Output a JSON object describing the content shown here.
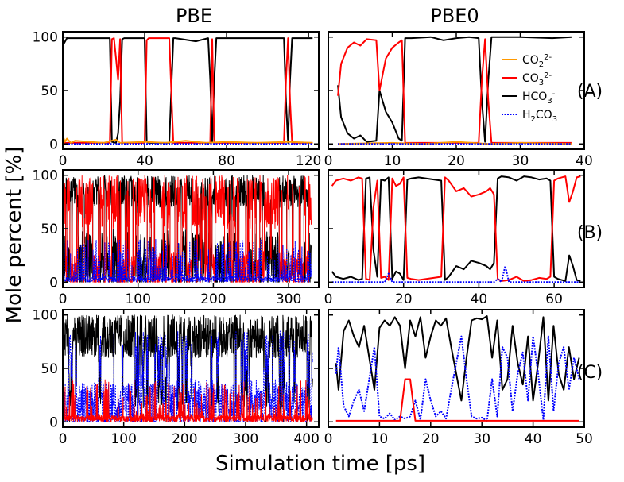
{
  "figure": {
    "column_titles": [
      "PBE",
      "PBE0"
    ],
    "row_labels": [
      "(A)",
      "(B)",
      "(C)"
    ],
    "ylabel": "Mole percent [%]",
    "xlabel": "Simulation time [ps]"
  },
  "legend": {
    "placement": "inside top-right of panel (A) PBE0",
    "entries": [
      {
        "base": "CO",
        "sub": "2",
        "sup": "2-",
        "color": "#ff9900",
        "style": "solid"
      },
      {
        "base": "CO",
        "sub": "3",
        "sup": "2-",
        "color": "#ff0000",
        "style": "solid"
      },
      {
        "base": "HCO",
        "sub": "3",
        "sup": "-",
        "color": "#000000",
        "style": "solid"
      },
      {
        "base": "H",
        "sub": "2",
        "base2": "CO",
        "sub2": "3",
        "color": "#0000ff",
        "style": "dotted"
      }
    ]
  },
  "chart_data": [
    {
      "type": "line",
      "panel": "A",
      "column": "PBE",
      "xlim": [
        0,
        125
      ],
      "ylim": [
        -5,
        105
      ],
      "xticks": [
        0,
        40,
        80,
        120
      ],
      "yticks": [
        0,
        50,
        100
      ],
      "grid": false,
      "series": [
        {
          "name": "HCO3-",
          "color": "#000000",
          "x": [
            0,
            2,
            10,
            20,
            23,
            24,
            26,
            27,
            28,
            29,
            30,
            31,
            40,
            41,
            42,
            43,
            52,
            53,
            54,
            55,
            65,
            71,
            72,
            73,
            74,
            75,
            80,
            90,
            100,
            108,
            109,
            110,
            111,
            112,
            118,
            122
          ],
          "y": [
            92,
            99,
            99,
            99,
            99,
            2,
            1,
            10,
            40,
            98,
            99,
            99,
            99,
            2,
            1,
            1,
            1,
            50,
            99,
            99,
            96,
            99,
            60,
            2,
            60,
            99,
            99,
            99,
            99,
            99,
            40,
            1,
            60,
            99,
            99,
            99
          ]
        },
        {
          "name": "CO3 2-",
          "color": "#ff0000",
          "x": [
            0,
            23,
            24,
            25,
            26,
            27,
            28,
            29,
            40,
            41,
            42,
            52,
            53,
            54,
            72,
            73,
            74,
            108,
            109,
            110,
            111,
            112,
            122
          ],
          "y": [
            1,
            1,
            98,
            99,
            80,
            60,
            98,
            1,
            1,
            97,
            99,
            99,
            50,
            1,
            1,
            98,
            1,
            1,
            60,
            99,
            40,
            1,
            1
          ]
        },
        {
          "name": "CO2",
          "color": "#ff9900",
          "x": [
            0,
            1,
            2,
            4,
            6,
            20,
            26,
            28,
            40,
            50,
            60,
            70,
            80,
            95,
            110,
            122
          ],
          "y": [
            8,
            2,
            5,
            1,
            3,
            1,
            4,
            1,
            2,
            1,
            3,
            1,
            2,
            1,
            2,
            1
          ]
        },
        {
          "name": "H2CO3",
          "color": "#0000ff",
          "x": [
            0,
            30,
            60,
            90,
            122
          ],
          "y": [
            0,
            0,
            0,
            0,
            0
          ]
        }
      ]
    },
    {
      "type": "line",
      "panel": "A",
      "column": "PBE0",
      "xlim": [
        0,
        40
      ],
      "ylim": [
        -5,
        105
      ],
      "xticks": [
        0,
        10,
        20,
        30,
        40
      ],
      "yticks": [
        0,
        50,
        100
      ],
      "grid": false,
      "series": [
        {
          "name": "HCO3-",
          "color": "#000000",
          "x": [
            1.5,
            2,
            3,
            4,
            5,
            6,
            7.5,
            8,
            8.5,
            9,
            10,
            11,
            11.5,
            12,
            13,
            16,
            18,
            20,
            22,
            23.5,
            24,
            24.5,
            25,
            25.5,
            30,
            35,
            38
          ],
          "y": [
            55,
            25,
            10,
            5,
            8,
            2,
            3,
            50,
            40,
            30,
            20,
            5,
            3,
            99,
            99,
            100,
            97,
            99,
            100,
            99,
            40,
            2,
            60,
            100,
            100,
            99,
            100
          ]
        },
        {
          "name": "CO3 2-",
          "color": "#ff0000",
          "x": [
            1.5,
            2,
            3,
            4,
            5,
            6,
            7.5,
            8,
            9,
            10,
            11,
            11.5,
            12,
            23.5,
            24,
            24.5,
            25,
            25.5,
            38
          ],
          "y": [
            45,
            75,
            90,
            95,
            92,
            98,
            97,
            50,
            80,
            90,
            95,
            97,
            1,
            1,
            60,
            98,
            40,
            1,
            1
          ]
        },
        {
          "name": "CO2",
          "color": "#ff9900",
          "x": [
            1.5,
            10,
            15,
            20,
            25,
            30,
            38
          ],
          "y": [
            0,
            1,
            0,
            2,
            0,
            1,
            0
          ]
        },
        {
          "name": "H2CO3",
          "color": "#0000ff",
          "x": [
            1.5,
            20,
            38
          ],
          "y": [
            0,
            0,
            0
          ]
        }
      ]
    },
    {
      "type": "line",
      "panel": "B",
      "column": "PBE",
      "xlim": [
        0,
        340
      ],
      "ylim": [
        -5,
        105
      ],
      "xticks": [
        0,
        100,
        200,
        300
      ],
      "yticks": [
        0,
        50,
        100
      ],
      "grid": false,
      "series": [
        {
          "name": "HCO3-",
          "color": "#000000",
          "x": [
            0,
            330
          ],
          "y": [
            85,
            80
          ]
        },
        {
          "name": "CO3 2-",
          "color": "#ff0000",
          "x": [
            0,
            330
          ],
          "y": [
            10,
            15
          ]
        },
        {
          "name": "H2CO3",
          "color": "#0000ff",
          "x": [
            0,
            330
          ],
          "y": [
            3,
            3
          ]
        }
      ]
    },
    {
      "type": "line",
      "panel": "B",
      "column": "PBE0",
      "xlim": [
        0,
        68
      ],
      "ylim": [
        -5,
        105
      ],
      "xticks": [
        0,
        20,
        40,
        60
      ],
      "yticks": [
        0,
        50,
        100
      ],
      "grid": false,
      "series": [
        {
          "name": "HCO3-",
          "color": "#000000",
          "x": [
            1,
            2,
            4,
            6,
            8,
            9,
            10,
            11,
            12,
            13,
            14,
            15,
            16,
            17,
            18,
            19,
            20,
            21,
            22,
            24,
            26,
            28,
            30,
            31,
            32,
            34,
            36,
            38,
            40,
            42,
            43,
            44,
            45,
            46,
            48,
            50,
            52,
            54,
            56,
            58,
            59,
            60,
            61,
            62,
            63,
            64,
            65,
            66,
            67
          ],
          "y": [
            10,
            5,
            3,
            5,
            2,
            3,
            97,
            98,
            30,
            5,
            96,
            95,
            98,
            3,
            10,
            8,
            2,
            96,
            97,
            98,
            97,
            96,
            95,
            2,
            5,
            15,
            12,
            20,
            18,
            15,
            12,
            18,
            97,
            99,
            98,
            95,
            99,
            98,
            96,
            97,
            95,
            5,
            3,
            2,
            1,
            25,
            15,
            2,
            1
          ]
        },
        {
          "name": "CO3 2-",
          "color": "#ff0000",
          "x": [
            1,
            2,
            4,
            6,
            8,
            9,
            10,
            11,
            12,
            13,
            14,
            15,
            16,
            17,
            18,
            19,
            20,
            21,
            22,
            24,
            26,
            28,
            30,
            31,
            32,
            34,
            36,
            38,
            40,
            42,
            43,
            44,
            45,
            46,
            48,
            50,
            52,
            54,
            56,
            58,
            59,
            60,
            61,
            62,
            63,
            64,
            65,
            66,
            67
          ],
          "y": [
            90,
            95,
            97,
            95,
            98,
            97,
            3,
            2,
            70,
            95,
            4,
            5,
            2,
            97,
            90,
            92,
            98,
            4,
            3,
            2,
            3,
            4,
            5,
            98,
            95,
            85,
            88,
            80,
            82,
            85,
            88,
            82,
            3,
            1,
            2,
            5,
            1,
            2,
            4,
            3,
            5,
            95,
            97,
            98,
            99,
            75,
            85,
            98,
            99
          ]
        },
        {
          "name": "H2CO3",
          "color": "#0000ff",
          "x": [
            1,
            10,
            15,
            16,
            17,
            20,
            40,
            44,
            45,
            46,
            47,
            48,
            55,
            60,
            67
          ],
          "y": [
            0,
            0,
            0,
            8,
            0,
            0,
            0,
            0,
            3,
            0,
            15,
            0,
            0,
            0,
            0
          ]
        }
      ]
    },
    {
      "type": "line",
      "panel": "C",
      "column": "PBE",
      "xlim": [
        0,
        420
      ],
      "ylim": [
        -5,
        105
      ],
      "xticks": [
        0,
        100,
        200,
        300,
        400
      ],
      "yticks": [
        0,
        50,
        100
      ],
      "grid": false,
      "series": [
        {
          "name": "HCO3-",
          "color": "#000000",
          "x": [
            0,
            410
          ],
          "y": [
            85,
            85
          ]
        },
        {
          "name": "H2CO3",
          "color": "#0000ff",
          "x": [
            0,
            410
          ],
          "y": [
            20,
            20
          ]
        },
        {
          "name": "CO3 2-",
          "color": "#ff0000",
          "x": [
            0,
            410
          ],
          "y": [
            5,
            5
          ]
        }
      ]
    },
    {
      "type": "line",
      "panel": "C",
      "column": "PBE0",
      "xlim": [
        0,
        50
      ],
      "ylim": [
        -5,
        105
      ],
      "xticks": [
        0,
        10,
        20,
        30,
        40,
        50
      ],
      "yticks": [
        0,
        50,
        100
      ],
      "grid": false,
      "series": [
        {
          "name": "HCO3-",
          "color": "#000000",
          "x": [
            1.5,
            2,
            3,
            4,
            5,
            6,
            7,
            8,
            9,
            10,
            11,
            12,
            13,
            14,
            15,
            16,
            17,
            18,
            19,
            20,
            21,
            22,
            23,
            24,
            25,
            26,
            27,
            28,
            29,
            30,
            31,
            32,
            33,
            34,
            35,
            36,
            37,
            38,
            39,
            40,
            41,
            42,
            43,
            44,
            45,
            46,
            47,
            48,
            49
          ],
          "y": [
            55,
            30,
            85,
            95,
            80,
            70,
            90,
            60,
            30,
            88,
            95,
            90,
            98,
            90,
            50,
            95,
            80,
            98,
            60,
            80,
            95,
            90,
            97,
            70,
            45,
            20,
            60,
            95,
            97,
            96,
            99,
            60,
            95,
            30,
            40,
            90,
            55,
            35,
            80,
            20,
            55,
            98,
            20,
            90,
            45,
            30,
            70,
            40,
            60
          ]
        },
        {
          "name": "H2CO3",
          "color": "#0000ff",
          "x": [
            1.5,
            2,
            3,
            4,
            5,
            6,
            7,
            8,
            9,
            10,
            11,
            12,
            13,
            14,
            15,
            16,
            17,
            18,
            19,
            20,
            21,
            22,
            23,
            24,
            25,
            26,
            27,
            28,
            29,
            30,
            31,
            32,
            33,
            34,
            35,
            36,
            37,
            38,
            39,
            40,
            41,
            42,
            43,
            44,
            45,
            46,
            47,
            48,
            49
          ],
          "y": [
            45,
            70,
            15,
            5,
            20,
            30,
            10,
            40,
            70,
            5,
            3,
            8,
            2,
            5,
            3,
            5,
            20,
            2,
            40,
            20,
            5,
            10,
            3,
            30,
            55,
            80,
            40,
            5,
            3,
            4,
            1,
            40,
            5,
            70,
            60,
            10,
            45,
            65,
            20,
            80,
            45,
            2,
            80,
            10,
            55,
            70,
            30,
            60,
            40
          ]
        },
        {
          "name": "CO3 2-",
          "color": "#ff0000",
          "x": [
            1.5,
            10,
            14,
            15,
            16,
            17,
            20,
            30,
            40,
            49
          ],
          "y": [
            1,
            1,
            1,
            40,
            40,
            1,
            1,
            1,
            1,
            1
          ]
        }
      ]
    }
  ]
}
